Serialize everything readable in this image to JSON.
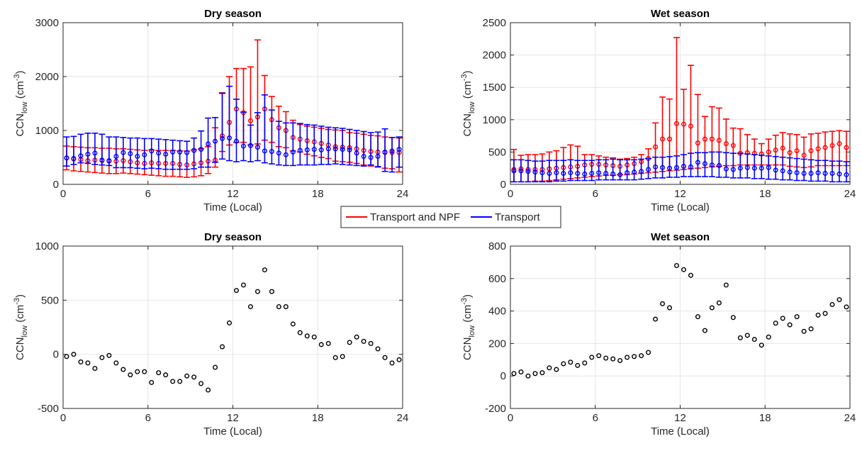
{
  "legend": {
    "entries": [
      {
        "label": "Transport and NPF",
        "color": "#ff0000"
      },
      {
        "label": "Transport",
        "color": "#0000ff"
      }
    ]
  },
  "chart_data": [
    {
      "type": "scatter",
      "title": "Dry season",
      "xlabel": "Time (Local)",
      "ylabel": {
        "main": "CCN",
        "sub": "low",
        "unit_open": " (cm",
        "unit_sup": "-3",
        "unit_close": ")"
      },
      "xlim": [
        0,
        24
      ],
      "ylim": [
        0,
        3000
      ],
      "xticks": [
        0,
        6,
        12,
        18,
        24
      ],
      "yticks": [
        0,
        1000,
        2000,
        3000
      ],
      "grid": true,
      "x": [
        0.25,
        0.75,
        1.25,
        1.75,
        2.25,
        2.75,
        3.25,
        3.75,
        4.25,
        4.75,
        5.25,
        5.75,
        6.25,
        6.75,
        7.25,
        7.75,
        8.25,
        8.75,
        9.25,
        9.75,
        10.25,
        10.75,
        11.25,
        11.75,
        12.25,
        12.75,
        13.25,
        13.75,
        14.25,
        14.75,
        15.25,
        15.75,
        16.25,
        16.75,
        17.25,
        17.75,
        18.25,
        18.75,
        19.25,
        19.75,
        20.25,
        20.75,
        21.25,
        21.75,
        22.25,
        22.75,
        23.25,
        23.75
      ],
      "series": [
        {
          "name": "Transport and NPF",
          "color": "#ff0000",
          "mean": [
            490,
            470,
            460,
            440,
            450,
            440,
            430,
            430,
            440,
            420,
            400,
            390,
            400,
            390,
            390,
            390,
            370,
            360,
            380,
            400,
            430,
            450,
            900,
            1150,
            1400,
            1330,
            1180,
            1250,
            1400,
            1200,
            1050,
            1000,
            870,
            840,
            810,
            790,
            760,
            730,
            700,
            690,
            680,
            660,
            630,
            610,
            600,
            590,
            590,
            590
          ],
          "upper": [
            710,
            700,
            690,
            680,
            680,
            670,
            670,
            660,
            660,
            650,
            640,
            630,
            640,
            630,
            630,
            630,
            620,
            620,
            640,
            660,
            700,
            1050,
            1700,
            2000,
            2150,
            2150,
            2180,
            2680,
            2020,
            1630,
            1450,
            1350,
            1190,
            1110,
            1080,
            1060,
            1040,
            1020,
            1010,
            1000,
            960,
            950,
            930,
            910,
            900,
            880,
            870,
            860
          ],
          "lower": [
            270,
            250,
            240,
            230,
            220,
            210,
            200,
            200,
            210,
            200,
            190,
            180,
            170,
            160,
            150,
            150,
            140,
            130,
            140,
            160,
            200,
            320,
            610,
            730,
            780,
            780,
            730,
            750,
            820,
            780,
            700,
            680,
            620,
            600,
            560,
            530,
            500,
            480,
            430,
            420,
            410,
            390,
            360,
            340,
            320,
            300,
            290,
            230
          ]
        },
        {
          "name": "Transport",
          "color": "#0000ff",
          "mean": [
            490,
            480,
            530,
            560,
            580,
            450,
            440,
            520,
            590,
            570,
            520,
            550,
            620,
            580,
            560,
            600,
            600,
            590,
            630,
            650,
            750,
            800,
            850,
            860,
            800,
            710,
            720,
            690,
            620,
            610,
            580,
            550,
            600,
            630,
            640,
            650,
            640,
            660,
            660,
            650,
            640,
            580,
            520,
            500,
            520,
            600,
            620,
            650
          ],
          "upper": [
            880,
            890,
            930,
            950,
            950,
            930,
            880,
            880,
            870,
            860,
            860,
            850,
            850,
            840,
            830,
            820,
            810,
            800,
            860,
            990,
            1230,
            1240,
            1690,
            1820,
            1580,
            1340,
            1100,
            1330,
            1660,
            1380,
            1170,
            1140,
            1140,
            1130,
            1110,
            1100,
            1080,
            1060,
            1050,
            1040,
            1020,
            1000,
            980,
            960,
            970,
            1030,
            870,
            880
          ],
          "lower": [
            340,
            370,
            400,
            390,
            370,
            360,
            350,
            310,
            310,
            310,
            300,
            290,
            300,
            290,
            280,
            280,
            280,
            280,
            290,
            320,
            320,
            410,
            470,
            440,
            420,
            440,
            420,
            440,
            400,
            380,
            360,
            350,
            350,
            360,
            360,
            360,
            370,
            370,
            380,
            370,
            360,
            350,
            340,
            360,
            330,
            240,
            230,
            320
          ]
        }
      ]
    },
    {
      "type": "scatter",
      "title": "Wet season",
      "xlabel": "Time (Local)",
      "ylabel": {
        "main": "CCN",
        "sub": "low",
        "unit_open": " (cm",
        "unit_sup": "-3",
        "unit_close": ")"
      },
      "xlim": [
        0,
        24
      ],
      "ylim": [
        0,
        2500
      ],
      "xticks": [
        0,
        6,
        12,
        18,
        24
      ],
      "yticks": [
        0,
        500,
        1000,
        1500,
        2000,
        2500
      ],
      "grid": true,
      "x": [
        0.25,
        0.75,
        1.25,
        1.75,
        2.25,
        2.75,
        3.25,
        3.75,
        4.25,
        4.75,
        5.25,
        5.75,
        6.25,
        6.75,
        7.25,
        7.75,
        8.25,
        8.75,
        9.25,
        9.75,
        10.25,
        10.75,
        11.25,
        11.75,
        12.25,
        12.75,
        13.25,
        13.75,
        14.25,
        14.75,
        15.25,
        15.75,
        16.25,
        16.75,
        17.25,
        17.75,
        18.25,
        18.75,
        19.25,
        19.75,
        20.25,
        20.75,
        21.25,
        21.75,
        22.25,
        22.75,
        23.25,
        23.75
      ],
      "series": [
        {
          "name": "Transport and NPF",
          "color": "#ff0000",
          "mean": [
            230,
            240,
            230,
            230,
            230,
            240,
            250,
            260,
            270,
            280,
            300,
            310,
            310,
            300,
            290,
            280,
            300,
            320,
            350,
            400,
            580,
            700,
            700,
            940,
            930,
            900,
            640,
            700,
            700,
            680,
            630,
            600,
            480,
            490,
            480,
            470,
            500,
            530,
            560,
            490,
            520,
            450,
            520,
            550,
            570,
            600,
            630,
            570
          ],
          "upper": [
            540,
            450,
            460,
            460,
            470,
            500,
            520,
            570,
            610,
            590,
            460,
            460,
            440,
            420,
            410,
            390,
            400,
            420,
            460,
            550,
            950,
            1350,
            1320,
            2270,
            1470,
            1840,
            1390,
            1050,
            1200,
            1180,
            1010,
            870,
            860,
            770,
            700,
            630,
            700,
            760,
            800,
            780,
            770,
            730,
            780,
            790,
            810,
            820,
            830,
            820
          ],
          "lower": [
            40,
            40,
            40,
            50,
            50,
            60,
            70,
            80,
            90,
            100,
            110,
            120,
            130,
            140,
            140,
            150,
            150,
            160,
            170,
            180,
            190,
            200,
            210,
            220,
            230,
            240,
            250,
            260,
            270,
            280,
            290,
            290,
            300,
            300,
            300,
            300,
            300,
            300,
            300,
            280,
            270,
            260,
            270,
            290,
            290,
            290,
            290,
            290
          ]
        },
        {
          "name": "Transport",
          "color": "#0000ff",
          "mean": [
            210,
            210,
            200,
            190,
            180,
            170,
            180,
            170,
            180,
            170,
            160,
            170,
            180,
            170,
            160,
            150,
            180,
            190,
            200,
            230,
            270,
            260,
            250,
            260,
            280,
            270,
            340,
            320,
            300,
            290,
            240,
            230,
            250,
            260,
            250,
            250,
            260,
            220,
            210,
            190,
            180,
            170,
            170,
            180,
            170,
            170,
            160,
            150
          ],
          "upper": [
            380,
            380,
            370,
            360,
            360,
            370,
            370,
            370,
            380,
            370,
            370,
            370,
            380,
            380,
            390,
            380,
            380,
            380,
            390,
            400,
            420,
            420,
            430,
            440,
            460,
            480,
            490,
            490,
            500,
            500,
            490,
            480,
            480,
            470,
            460,
            450,
            440,
            430,
            420,
            410,
            400,
            390,
            380,
            370,
            370,
            360,
            360,
            350
          ],
          "lower": [
            40,
            40,
            40,
            40,
            40,
            40,
            50,
            50,
            60,
            60,
            60,
            60,
            70,
            70,
            70,
            70,
            70,
            70,
            80,
            90,
            100,
            100,
            110,
            110,
            120,
            120,
            120,
            120,
            120,
            110,
            110,
            100,
            100,
            100,
            90,
            90,
            80,
            80,
            70,
            70,
            60,
            60,
            50,
            50,
            50,
            40,
            40,
            40
          ]
        }
      ]
    },
    {
      "type": "scatter",
      "title": "Dry season",
      "xlabel": "Time (Local)",
      "ylabel": {
        "main": "CCN",
        "sub": "low",
        "unit_open": " (cm",
        "unit_sup": "-3",
        "unit_close": ")"
      },
      "xlim": [
        0,
        24
      ],
      "ylim": [
        -500,
        1000
      ],
      "xticks": [
        0,
        6,
        12,
        18,
        24
      ],
      "yticks": [
        -500,
        0,
        500,
        1000
      ],
      "grid": true,
      "x": [
        0.25,
        0.75,
        1.25,
        1.75,
        2.25,
        2.75,
        3.25,
        3.75,
        4.25,
        4.75,
        5.25,
        5.75,
        6.25,
        6.75,
        7.25,
        7.75,
        8.25,
        8.75,
        9.25,
        9.75,
        10.25,
        10.75,
        11.25,
        11.75,
        12.25,
        12.75,
        13.25,
        13.75,
        14.25,
        14.75,
        15.25,
        15.75,
        16.25,
        16.75,
        17.25,
        17.75,
        18.25,
        18.75,
        19.25,
        19.75,
        20.25,
        20.75,
        21.25,
        21.75,
        22.25,
        22.75,
        23.25,
        23.75
      ],
      "series": [
        {
          "name": "",
          "color": "#000000",
          "values": [
            -20,
            0,
            -70,
            -80,
            -130,
            -30,
            -10,
            -80,
            -140,
            -190,
            -160,
            -160,
            -260,
            -170,
            -190,
            -250,
            -250,
            -200,
            -210,
            -270,
            -330,
            -120,
            70,
            290,
            590,
            640,
            440,
            580,
            780,
            580,
            440,
            440,
            280,
            200,
            170,
            160,
            90,
            100,
            -30,
            -20,
            110,
            160,
            120,
            100,
            50,
            -30,
            -80,
            -50
          ]
        }
      ]
    },
    {
      "type": "scatter",
      "title": "Wet season",
      "xlabel": "Time (Local)",
      "ylabel": {
        "main": "CCN",
        "sub": "low",
        "unit_open": " (cm",
        "unit_sup": "-3",
        "unit_close": ")"
      },
      "xlim": [
        0,
        24
      ],
      "ylim": [
        -200,
        800
      ],
      "xticks": [
        0,
        6,
        12,
        18,
        24
      ],
      "yticks": [
        -200,
        0,
        200,
        400,
        600,
        800
      ],
      "grid": true,
      "x": [
        0.25,
        0.75,
        1.25,
        1.75,
        2.25,
        2.75,
        3.25,
        3.75,
        4.25,
        4.75,
        5.25,
        5.75,
        6.25,
        6.75,
        7.25,
        7.75,
        8.25,
        8.75,
        9.25,
        9.75,
        10.25,
        10.75,
        11.25,
        11.75,
        12.25,
        12.75,
        13.25,
        13.75,
        14.25,
        14.75,
        15.25,
        15.75,
        16.25,
        16.75,
        17.25,
        17.75,
        18.25,
        18.75,
        19.25,
        19.75,
        20.25,
        20.75,
        21.25,
        21.75,
        22.25,
        22.75,
        23.25,
        23.75
      ],
      "series": [
        {
          "name": "",
          "color": "#000000",
          "values": [
            15,
            25,
            0,
            15,
            20,
            50,
            40,
            75,
            85,
            65,
            80,
            115,
            125,
            110,
            105,
            95,
            115,
            120,
            125,
            145,
            350,
            445,
            420,
            680,
            655,
            620,
            365,
            280,
            420,
            450,
            560,
            360,
            235,
            250,
            225,
            190,
            240,
            325,
            355,
            315,
            365,
            275,
            290,
            375,
            385,
            440,
            470,
            425
          ]
        }
      ]
    }
  ]
}
